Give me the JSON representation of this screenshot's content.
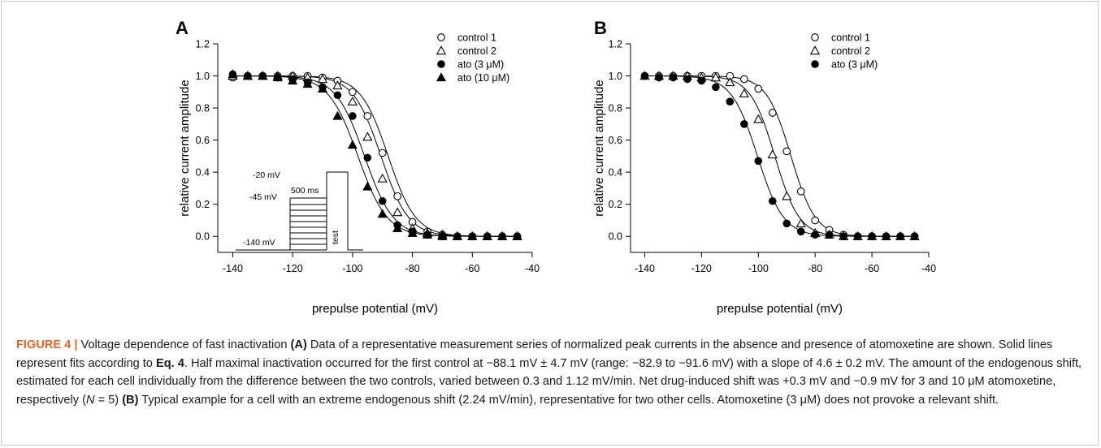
{
  "panels": [
    {
      "label": "A",
      "chart_data": {
        "type": "scatter",
        "title": "",
        "xlabel": "prepulse potential (mV)",
        "ylabel": "relative current amplitude",
        "xlim": [
          -145,
          -40
        ],
        "ylim": [
          -0.1,
          1.2
        ],
        "xticks": [
          -140,
          -120,
          -100,
          -80,
          -60,
          -40
        ],
        "yticks": [
          0.0,
          0.2,
          0.4,
          0.6,
          0.8,
          1.0,
          1.2
        ],
        "legend_position": "top-right",
        "grid": false,
        "series": [
          {
            "name": "control 1",
            "marker": "open-circle",
            "fit_v_half": -88.1,
            "fit_slope": 4.6,
            "x": [
              -140,
              -135,
              -130,
              -125,
              -120,
              -115,
              -110,
              -105,
              -100,
              -95,
              -90,
              -85,
              -80,
              -75,
              -70,
              -65,
              -60,
              -55,
              -50,
              -45
            ],
            "y": [
              0.99,
              1.0,
              1.0,
              1.0,
              1.0,
              1.0,
              0.99,
              0.97,
              0.9,
              0.75,
              0.52,
              0.25,
              0.09,
              0.03,
              0.01,
              0.0,
              0.0,
              0.0,
              0.0,
              0.0
            ]
          },
          {
            "name": "control 2",
            "marker": "open-triangle",
            "fit_v_half": -90.5,
            "fit_slope": 4.6,
            "x": [
              -140,
              -135,
              -130,
              -125,
              -120,
              -115,
              -110,
              -105,
              -100,
              -95,
              -90,
              -85,
              -80,
              -75,
              -70,
              -65,
              -60,
              -55,
              -50,
              -45
            ],
            "y": [
              1.0,
              1.0,
              1.0,
              1.0,
              1.0,
              0.99,
              0.98,
              0.94,
              0.84,
              0.62,
              0.36,
              0.15,
              0.05,
              0.02,
              0.01,
              0.0,
              0.0,
              0.0,
              0.0,
              0.0
            ]
          },
          {
            "name": "ato (3 μM)",
            "marker": "filled-circle",
            "fit_v_half": -96.0,
            "fit_slope": 4.8,
            "x": [
              -140,
              -135,
              -130,
              -125,
              -120,
              -115,
              -110,
              -105,
              -100,
              -95,
              -90,
              -85,
              -80,
              -75,
              -70,
              -65,
              -60,
              -55,
              -50,
              -45
            ],
            "y": [
              1.01,
              1.0,
              1.0,
              0.99,
              0.98,
              0.96,
              0.93,
              0.88,
              0.75,
              0.49,
              0.22,
              0.07,
              0.03,
              0.01,
              0.0,
              0.0,
              0.0,
              0.0,
              0.0,
              0.0
            ]
          },
          {
            "name": "ato (10 μM)",
            "marker": "filled-triangle",
            "fit_v_half": -98.2,
            "fit_slope": 4.9,
            "x": [
              -140,
              -135,
              -130,
              -125,
              -120,
              -115,
              -110,
              -105,
              -100,
              -95,
              -90,
              -85,
              -80,
              -75,
              -70,
              -65,
              -60,
              -55,
              -50,
              -45
            ],
            "y": [
              1.01,
              1.0,
              1.0,
              0.99,
              0.97,
              0.95,
              0.92,
              0.75,
              0.57,
              0.31,
              0.14,
              0.05,
              0.02,
              0.01,
              0.0,
              0.0,
              0.0,
              0.0,
              0.0,
              0.0
            ]
          }
        ],
        "inset": {
          "labels": {
            "top": "-20 mV",
            "mid": "-45 mV",
            "duration": "500 ms",
            "hold": "-140 mV",
            "test": "test"
          }
        }
      }
    },
    {
      "label": "B",
      "chart_data": {
        "type": "scatter",
        "title": "",
        "xlabel": "prepulse potential (mV)",
        "ylabel": "relative current amplitude",
        "xlim": [
          -145,
          -40
        ],
        "ylim": [
          -0.1,
          1.2
        ],
        "xticks": [
          -140,
          -120,
          -100,
          -80,
          -60,
          -40
        ],
        "yticks": [
          0.0,
          0.2,
          0.4,
          0.6,
          0.8,
          1.0,
          1.2
        ],
        "legend_position": "top-right",
        "grid": false,
        "series": [
          {
            "name": "control 1",
            "marker": "open-circle",
            "fit_v_half": -88.5,
            "fit_slope": 4.3,
            "x": [
              -140,
              -135,
              -130,
              -125,
              -120,
              -115,
              -110,
              -105,
              -100,
              -95,
              -90,
              -85,
              -80,
              -75,
              -70,
              -65,
              -60,
              -55,
              -50,
              -45
            ],
            "y": [
              1.0,
              1.0,
              1.0,
              1.0,
              1.0,
              1.0,
              1.0,
              0.98,
              0.92,
              0.77,
              0.53,
              0.28,
              0.1,
              0.04,
              0.01,
              0.0,
              0.0,
              0.0,
              0.0,
              0.0
            ]
          },
          {
            "name": "control 2",
            "marker": "open-triangle",
            "fit_v_half": -94.2,
            "fit_slope": 4.3,
            "x": [
              -140,
              -135,
              -130,
              -125,
              -120,
              -115,
              -110,
              -105,
              -100,
              -95,
              -90,
              -85,
              -80,
              -75,
              -70,
              -65,
              -60,
              -55,
              -50,
              -45
            ],
            "y": [
              1.0,
              1.0,
              1.0,
              1.0,
              0.99,
              0.99,
              0.96,
              0.89,
              0.73,
              0.51,
              0.25,
              0.08,
              0.02,
              0.01,
              0.0,
              0.0,
              0.0,
              0.0,
              0.0,
              0.0
            ]
          },
          {
            "name": "ato (3 μM)",
            "marker": "filled-circle",
            "fit_v_half": -100.3,
            "fit_slope": 4.6,
            "x": [
              -140,
              -135,
              -130,
              -125,
              -120,
              -115,
              -110,
              -105,
              -100,
              -95,
              -90,
              -85,
              -80,
              -75,
              -70,
              -65,
              -60,
              -55,
              -50,
              -45
            ],
            "y": [
              1.0,
              0.99,
              0.99,
              0.98,
              0.97,
              0.93,
              0.84,
              0.7,
              0.47,
              0.22,
              0.08,
              0.03,
              0.01,
              0.01,
              0.0,
              0.0,
              0.0,
              0.0,
              0.0,
              0.0
            ]
          }
        ]
      }
    }
  ],
  "caption": {
    "label": "FIGURE 4 |",
    "title": "Voltage dependence of fast inactivation",
    "a_label": "(A)",
    "text_a": "Data of a representative measurement series of normalized peak currents in the absence and presence of atomoxetine are shown. Solid lines represent fits according to",
    "eq_ref": "Eq. 4",
    "text_b": ". Half maximal inactivation occurred for the first control at −88.1 mV ± 4.7 mV (range: −82.9 to −91.6 mV) with a slope of 4.6 ± 0.2 mV. The amount of the endogenous shift, estimated for each cell individually from the difference between the two controls, varied between 0.3 and 1.12 mV/min. Net drug-induced shift was +0.3 mV and −0.9 mV for 3 and 10 μM atomoxetine, respectively (",
    "n_symbol": "N",
    "n_value": " = 5)",
    "b_label": "(B)",
    "text_c": "Typical example for a cell with an extreme endogenous shift (2.24 mV/min), representative for two other cells. Atomoxetine (3 μM) does not provoke a relevant shift."
  },
  "colors": {
    "accent": "#e8632a",
    "ink": "#000000",
    "border": "#c9c9c9"
  }
}
